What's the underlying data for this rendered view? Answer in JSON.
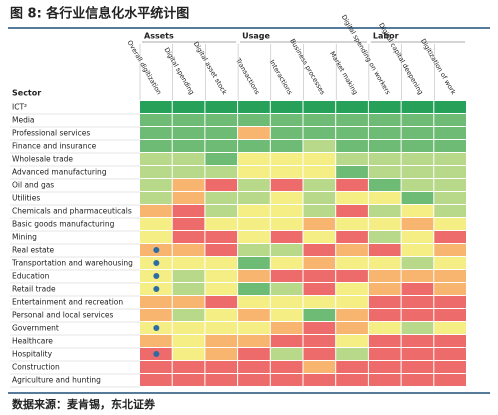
{
  "chart_data": {
    "type": "heatmap",
    "title": "图 8: 各行业信息化水平统计图",
    "source": "数据来源：麦肯锡，东北证券",
    "row_header": "Sector",
    "groups": [
      "Assets",
      "Usage",
      "Labor"
    ],
    "columns": [
      "Overall digitization",
      "Digital spending",
      "Digital asset stock",
      "Transactions",
      "Interactions",
      "Business processes",
      "Market making",
      "Digital spending on workers",
      "Digital capital deepening",
      "Digitization of work"
    ],
    "dot_color": "#2e6da4",
    "rows": [
      {
        "label": "ICT²",
        "colors": [
          "#27a05a",
          "#27a05a",
          "#27a05a",
          "#27a05a",
          "#27a05a",
          "#27a05a",
          "#27a05a",
          "#27a05a",
          "#27a05a",
          "#27a05a"
        ]
      },
      {
        "label": "Media",
        "colors": [
          "#6dbb74",
          "#6dbb74",
          "#6dbb74",
          "#6dbb74",
          "#6dbb74",
          "#6dbb74",
          "#6dbb74",
          "#6dbb74",
          "#6dbb74",
          "#6dbb74"
        ]
      },
      {
        "label": "Professional services",
        "colors": [
          "#6dbb74",
          "#6dbb74",
          "#6dbb74",
          "#f7b56f",
          "#6dbb74",
          "#6dbb74",
          "#6dbb74",
          "#6dbb74",
          "#6dbb74",
          "#6dbb74"
        ]
      },
      {
        "label": "Finance and insurance",
        "colors": [
          "#6dbb74",
          "#6dbb74",
          "#6dbb74",
          "#6dbb74",
          "#6dbb74",
          "#b9d98a",
          "#6dbb74",
          "#6dbb74",
          "#6dbb74",
          "#6dbb74"
        ]
      },
      {
        "label": "Wholesale trade",
        "colors": [
          "#b9d98a",
          "#b9d98a",
          "#6dbb74",
          "#f4ee84",
          "#f4ee84",
          "#f4ee84",
          "#b9d98a",
          "#b9d98a",
          "#b9d98a",
          "#b9d98a"
        ]
      },
      {
        "label": "Advanced manufacturing",
        "colors": [
          "#b9d98a",
          "#b9d98a",
          "#b9d98a",
          "#f4ee84",
          "#f4ee84",
          "#f4ee84",
          "#6dbb74",
          "#b9d98a",
          "#b9d98a",
          "#b9d98a"
        ]
      },
      {
        "label": "Oil and gas",
        "colors": [
          "#b9d98a",
          "#f7b56f",
          "#ee6b6b",
          "#b9d98a",
          "#ee6b6b",
          "#b9d98a",
          "#ee6b6b",
          "#6dbb74",
          "#b9d98a",
          "#b9d98a"
        ]
      },
      {
        "label": "Utilities",
        "colors": [
          "#b9d98a",
          "#f7b56f",
          "#b9d98a",
          "#b9d98a",
          "#f4ee84",
          "#b9d98a",
          "#f4ee84",
          "#f4ee84",
          "#6dbb74",
          "#b9d98a"
        ]
      },
      {
        "label": "Chemicals and pharmaceuticals",
        "colors": [
          "#f7b56f",
          "#ee6b6b",
          "#b9d98a",
          "#f4ee84",
          "#f4ee84",
          "#b9d98a",
          "#ee6b6b",
          "#b9d98a",
          "#f4ee84",
          "#b9d98a"
        ]
      },
      {
        "label": "Basic goods manufacturing",
        "colors": [
          "#f4ee84",
          "#ee6b6b",
          "#f4ee84",
          "#f4ee84",
          "#f4ee84",
          "#f7b56f",
          "#f4ee84",
          "#f4ee84",
          "#f7b56f",
          "#f4ee84"
        ]
      },
      {
        "label": "Mining",
        "colors": [
          "#f4ee84",
          "#ee6b6b",
          "#ee6b6b",
          "#f4ee84",
          "#ee6b6b",
          "#f4ee84",
          "#ee6b6b",
          "#b9d98a",
          "#f4ee84",
          "#ee6b6b"
        ]
      },
      {
        "label": "Real estate",
        "dot": true,
        "colors": [
          "#f7b56f",
          "#f7b56f",
          "#ee6b6b",
          "#b9d98a",
          "#b9d98a",
          "#ee6b6b",
          "#f7b56f",
          "#ee6b6b",
          "#f4ee84",
          "#f7b56f"
        ]
      },
      {
        "label": "Transportation and warehousing",
        "dot": true,
        "colors": [
          "#f4ee84",
          "#f4ee84",
          "#f4ee84",
          "#6dbb74",
          "#f4ee84",
          "#f7b56f",
          "#f4ee84",
          "#f4ee84",
          "#b9d98a",
          "#f4ee84"
        ]
      },
      {
        "label": "Education",
        "dot": true,
        "colors": [
          "#f4ee84",
          "#b9d98a",
          "#f4ee84",
          "#f7b56f",
          "#ee6b6b",
          "#ee6b6b",
          "#ee6b6b",
          "#f7b56f",
          "#f7b56f",
          "#f7b56f"
        ]
      },
      {
        "label": "Retail trade",
        "dot": true,
        "colors": [
          "#f4ee84",
          "#b9d98a",
          "#f4ee84",
          "#6dbb74",
          "#b9d98a",
          "#ee6b6b",
          "#f4ee84",
          "#f7b56f",
          "#ee6b6b",
          "#f7b56f"
        ]
      },
      {
        "label": "Entertainment and recreation",
        "colors": [
          "#f7b56f",
          "#f7b56f",
          "#ee6b6b",
          "#f4ee84",
          "#f4ee84",
          "#f4ee84",
          "#f4ee84",
          "#ee6b6b",
          "#ee6b6b",
          "#ee6b6b"
        ]
      },
      {
        "label": "Personal and local services",
        "colors": [
          "#f7b56f",
          "#b9d98a",
          "#f4ee84",
          "#f7b56f",
          "#f4ee84",
          "#6dbb74",
          "#f7b56f",
          "#ee6b6b",
          "#ee6b6b",
          "#ee6b6b"
        ]
      },
      {
        "label": "Government",
        "dot": true,
        "colors": [
          "#f4ee84",
          "#f4ee84",
          "#f4ee84",
          "#f4ee84",
          "#f7b56f",
          "#ee6b6b",
          "#f7b56f",
          "#f4ee84",
          "#b9d98a",
          "#f4ee84"
        ]
      },
      {
        "label": "Healthcare",
        "colors": [
          "#f7b56f",
          "#f4ee84",
          "#f7b56f",
          "#f7b56f",
          "#ee6b6b",
          "#ee6b6b",
          "#f4ee84",
          "#ee6b6b",
          "#ee6b6b",
          "#ee6b6b"
        ]
      },
      {
        "label": "Hospitality",
        "dot": true,
        "colors": [
          "#ee6b6b",
          "#f4ee84",
          "#f7b56f",
          "#ee6b6b",
          "#b9d98a",
          "#ee6b6b",
          "#b9d98a",
          "#ee6b6b",
          "#ee6b6b",
          "#ee6b6b"
        ]
      },
      {
        "label": "Construction",
        "colors": [
          "#ee6b6b",
          "#ee6b6b",
          "#ee6b6b",
          "#ee6b6b",
          "#ee6b6b",
          "#f7b56f",
          "#ee6b6b",
          "#ee6b6b",
          "#ee6b6b",
          "#ee6b6b"
        ]
      },
      {
        "label": "Agriculture and hunting",
        "colors": [
          "#ee6b6b",
          "#ee6b6b",
          "#ee6b6b",
          "#ee6b6b",
          "#ee6b6b",
          "#ee6b6b",
          "#ee6b6b",
          "#ee6b6b",
          "#ee6b6b",
          "#ee6b6b"
        ]
      }
    ]
  }
}
